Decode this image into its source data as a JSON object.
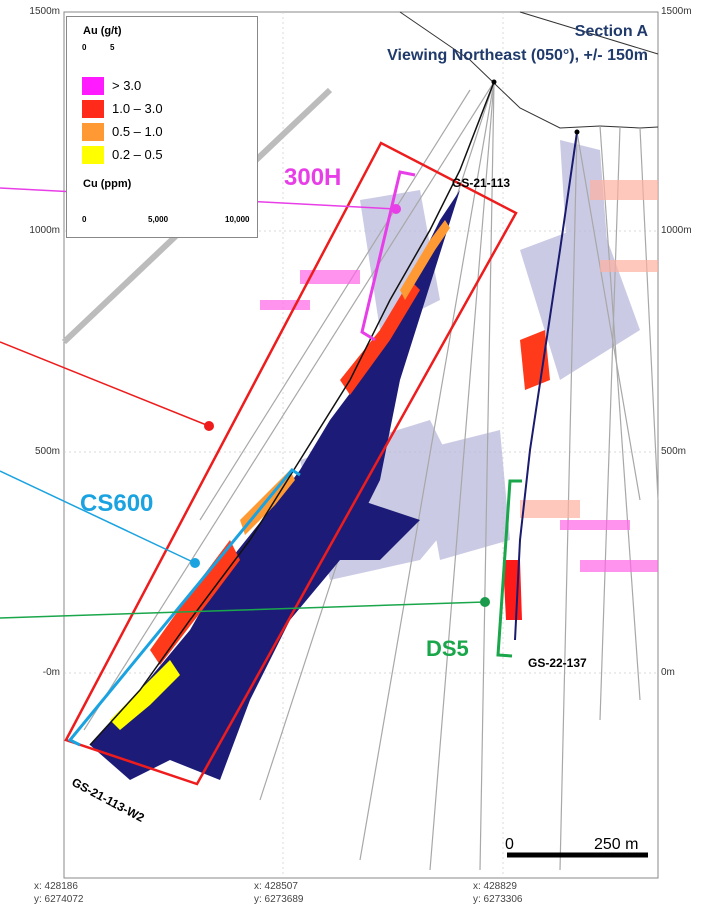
{
  "title": {
    "line1": "Section A",
    "line2": "Viewing Northeast (050°), +/- 150m"
  },
  "legend": {
    "au_title": "Au (g/t)",
    "au_scale_min": "0",
    "au_scale_max": "5",
    "au_classes": [
      {
        "label": "> 3.0",
        "color": "#ff1aff"
      },
      {
        "label": "1.0 – 3.0",
        "color": "#ff2a1a"
      },
      {
        "label": "0.5 – 1.0",
        "color": "#ff9933"
      },
      {
        "label": "0.2 – 0.5",
        "color": "#ffff00"
      }
    ],
    "cu_title": "Cu (ppm)",
    "cu_ticks": [
      "0",
      "5,000",
      "10,000"
    ]
  },
  "elevation_labels": {
    "left": [
      "1500m",
      "1000m",
      "500m",
      "-0m"
    ],
    "right": [
      "1500m",
      "1000m",
      "500m",
      "0m"
    ]
  },
  "coordinates": [
    {
      "x": "x: 428186",
      "y": "y: 6274072"
    },
    {
      "x": "x: 428507",
      "y": "y: 6273689"
    },
    {
      "x": "x: 428829",
      "y": "y: 6273306"
    }
  ],
  "zones": [
    {
      "name": "300H",
      "color": "#e83ee8"
    },
    {
      "name": "CS600",
      "color": "#1aa3e0"
    },
    {
      "name": "DS5",
      "color": "#1aa64a"
    }
  ],
  "drill_holes": [
    "GS-21-113",
    "GS-22-137",
    "GS-21-113-W2"
  ],
  "scale_bar": {
    "min": "0",
    "max": "250 m"
  },
  "colors": {
    "au_box": "#ee1c1c",
    "cu_trace": "#1a1a6e",
    "halo": "#b3b3d6",
    "title": "#1f3a6b"
  }
}
